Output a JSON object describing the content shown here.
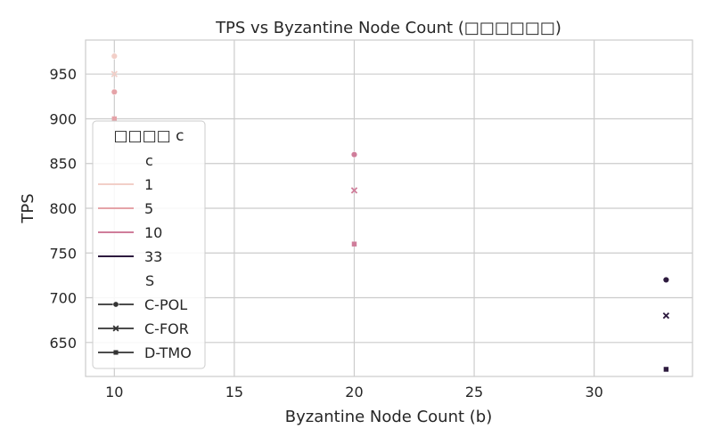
{
  "chart_data": {
    "type": "scatter",
    "title": "TPS vs Byzantine Node Count (□□□□□□)",
    "xlabel": "Byzantine Node Count (b)",
    "ylabel": "TPS",
    "xlim": [
      8.8,
      34.1
    ],
    "ylim": [
      612,
      988
    ],
    "xticks": [
      10,
      15,
      20,
      25,
      30
    ],
    "yticks": [
      650,
      700,
      750,
      800,
      850,
      900,
      950
    ],
    "grid": true,
    "legend": {
      "placement": "left",
      "title": "□□□□ c",
      "hue_title": "c",
      "hue_entries": [
        {
          "label": "1",
          "color": "#f2cfc8"
        },
        {
          "label": "5",
          "color": "#e5a3a8"
        },
        {
          "label": "10",
          "color": "#cf7d9a"
        },
        {
          "label": "33",
          "color": "#2d1a3e"
        }
      ],
      "style_title": "S",
      "style_entries": [
        {
          "label": "C-POL",
          "marker": "circle"
        },
        {
          "label": "C-FOR",
          "marker": "x"
        },
        {
          "label": "D-TMO",
          "marker": "square"
        }
      ]
    },
    "series": [
      {
        "c": "1",
        "S": "C-POL",
        "color": "#f2cfc8",
        "marker": "circle",
        "points": [
          [
            10,
            970
          ]
        ]
      },
      {
        "c": "1",
        "S": "C-FOR",
        "color": "#f2cfc8",
        "marker": "x",
        "points": [
          [
            10,
            950
          ]
        ]
      },
      {
        "c": "1",
        "S": "D-TMO",
        "color": "#f2cfc8",
        "marker": "square",
        "points": [
          [
            10,
            930
          ]
        ]
      },
      {
        "c": "5",
        "S": "C-POL",
        "color": "#e5a3a8",
        "marker": "circle",
        "points": [
          [
            10,
            930
          ]
        ]
      },
      {
        "c": "5",
        "S": "D-TMO",
        "color": "#e5a3a8",
        "marker": "square",
        "points": [
          [
            10,
            900
          ]
        ]
      },
      {
        "c": "10",
        "S": "C-POL",
        "color": "#cf7d9a",
        "marker": "circle",
        "points": [
          [
            20,
            860
          ]
        ]
      },
      {
        "c": "10",
        "S": "C-FOR",
        "color": "#cf7d9a",
        "marker": "x",
        "points": [
          [
            20,
            820
          ]
        ]
      },
      {
        "c": "10",
        "S": "D-TMO",
        "color": "#cf7d9a",
        "marker": "square",
        "points": [
          [
            20,
            760
          ]
        ]
      },
      {
        "c": "33",
        "S": "C-POL",
        "color": "#2d1a3e",
        "marker": "circle",
        "points": [
          [
            33,
            720
          ]
        ]
      },
      {
        "c": "33",
        "S": "C-FOR",
        "color": "#2d1a3e",
        "marker": "x",
        "points": [
          [
            33,
            680
          ]
        ]
      },
      {
        "c": "33",
        "S": "D-TMO",
        "color": "#2d1a3e",
        "marker": "square",
        "points": [
          [
            33,
            620
          ]
        ]
      }
    ]
  }
}
